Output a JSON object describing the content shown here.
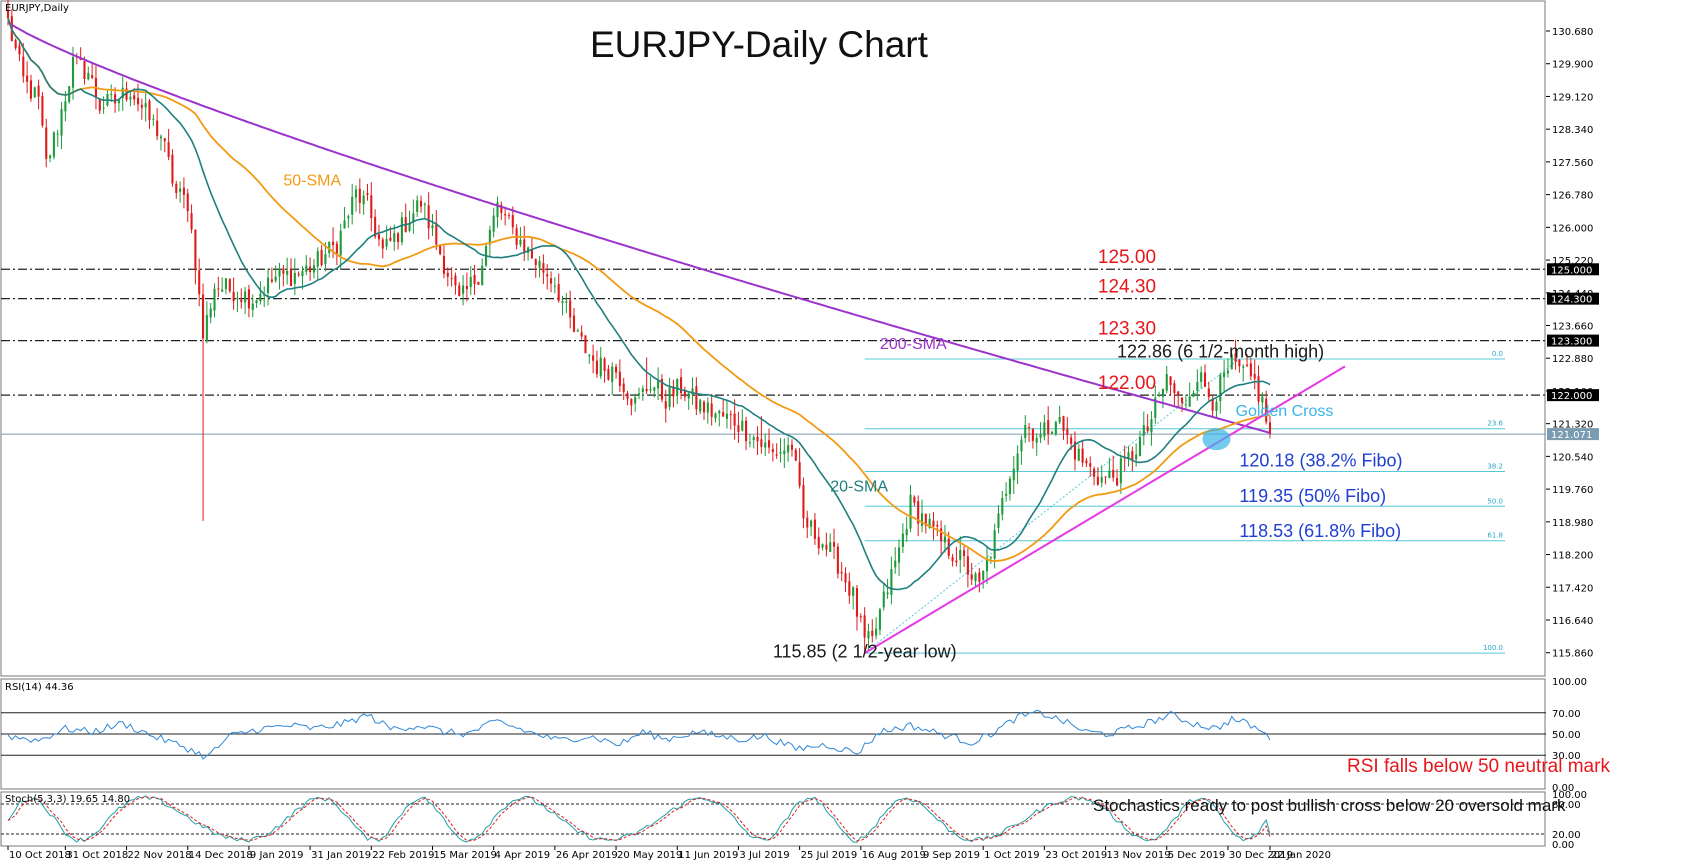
{
  "chart_data": {
    "type": "candlestick",
    "symbol_label": "EURJPY,Daily",
    "title": "EURJPY-Daily Chart",
    "y_axis": {
      "range": [
        115.4,
        131.3
      ],
      "ticks": [
        "130.680",
        "129.900",
        "129.120",
        "128.340",
        "127.560",
        "126.780",
        "126.000",
        "125.220",
        "124.440",
        "123.660",
        "122.880",
        "122.100",
        "121.320",
        "120.540",
        "119.760",
        "118.980",
        "118.200",
        "117.420",
        "116.640",
        "115.860"
      ],
      "price_boxes": [
        {
          "label": "125.000",
          "value": 125.0
        },
        {
          "label": "124.300",
          "value": 124.3
        },
        {
          "label": "123.300",
          "value": 123.3
        },
        {
          "label": "122.000",
          "value": 122.0
        },
        {
          "label": "121.071",
          "value": 121.071
        }
      ]
    },
    "x_axis": {
      "count": 331,
      "labels": [
        {
          "i": 0,
          "text": "10 Oct 2018"
        },
        {
          "i": 15,
          "text": "31 Oct 2018"
        },
        {
          "i": 31,
          "text": "22 Nov 2018"
        },
        {
          "i": 47,
          "text": "14 Dec 2018"
        },
        {
          "i": 63,
          "text": "9 Jan 2019"
        },
        {
          "i": 79,
          "text": "31 Jan 2019"
        },
        {
          "i": 95,
          "text": "22 Feb 2019"
        },
        {
          "i": 111,
          "text": "15 Mar 2019"
        },
        {
          "i": 127,
          "text": "4 Apr 2019"
        },
        {
          "i": 143,
          "text": "26 Apr 2019"
        },
        {
          "i": 159,
          "text": "20 May 2019"
        },
        {
          "i": 175,
          "text": "11 Jun 2019"
        },
        {
          "i": 191,
          "text": "3 Jul 2019"
        },
        {
          "i": 207,
          "text": "25 Jul 2019"
        },
        {
          "i": 223,
          "text": "16 Aug 2019"
        },
        {
          "i": 239,
          "text": "9 Sep 2019"
        },
        {
          "i": 255,
          "text": "1 Oct 2019"
        },
        {
          "i": 271,
          "text": "23 Oct 2019"
        },
        {
          "i": 287,
          "text": "13 Nov 2019"
        },
        {
          "i": 303,
          "text": "5 Dec 2019"
        },
        {
          "i": 319,
          "text": "30 Dec 2019"
        },
        {
          "i": 330,
          "text": "22 Jan 2020"
        }
      ]
    },
    "price_path": [
      [
        0,
        130.9
      ],
      [
        4,
        129.5
      ],
      [
        8,
        129.0
      ],
      [
        10,
        127.5
      ],
      [
        13,
        128.4
      ],
      [
        17,
        129.9
      ],
      [
        21,
        129.7
      ],
      [
        24,
        128.9
      ],
      [
        28,
        129.0
      ],
      [
        32,
        129.3
      ],
      [
        36,
        128.7
      ],
      [
        40,
        128.2
      ],
      [
        44,
        126.8
      ],
      [
        47,
        126.6
      ],
      [
        49,
        125.2
      ],
      [
        51,
        123.4
      ],
      [
        54,
        124.6
      ],
      [
        59,
        124.5
      ],
      [
        64,
        124.3
      ],
      [
        70,
        124.8
      ],
      [
        76,
        124.9
      ],
      [
        80,
        125.1
      ],
      [
        86,
        125.6
      ],
      [
        91,
        126.8
      ],
      [
        94,
        126.5
      ],
      [
        98,
        125.4
      ],
      [
        103,
        126.0
      ],
      [
        108,
        126.6
      ],
      [
        113,
        125.4
      ],
      [
        118,
        124.2
      ],
      [
        123,
        124.9
      ],
      [
        128,
        126.5
      ],
      [
        132,
        125.9
      ],
      [
        137,
        125.3
      ],
      [
        143,
        124.7
      ],
      [
        148,
        123.5
      ],
      [
        154,
        122.7
      ],
      [
        159,
        122.6
      ],
      [
        164,
        121.8
      ],
      [
        168,
        122.3
      ],
      [
        172,
        121.9
      ],
      [
        176,
        122.2
      ],
      [
        180,
        121.8
      ],
      [
        186,
        121.5
      ],
      [
        190,
        121.4
      ],
      [
        195,
        121.0
      ],
      [
        200,
        120.6
      ],
      [
        205,
        120.8
      ],
      [
        208,
        119.0
      ],
      [
        213,
        118.5
      ],
      [
        217,
        118.0
      ],
      [
        221,
        117.2
      ],
      [
        224,
        116.1
      ],
      [
        226,
        116.1
      ],
      [
        228,
        116.8
      ],
      [
        233,
        118.3
      ],
      [
        236,
        119.4
      ],
      [
        240,
        119.0
      ],
      [
        244,
        118.5
      ],
      [
        250,
        118.0
      ],
      [
        254,
        117.4
      ],
      [
        258,
        118.6
      ],
      [
        262,
        120.2
      ],
      [
        266,
        121.3
      ],
      [
        270,
        121.0
      ],
      [
        274,
        121.5
      ],
      [
        278,
        120.8
      ],
      [
        282,
        120.3
      ],
      [
        286,
        120.0
      ],
      [
        290,
        120.1
      ],
      [
        294,
        120.6
      ],
      [
        298,
        121.2
      ],
      [
        303,
        122.4
      ],
      [
        307,
        121.7
      ],
      [
        311,
        122.5
      ],
      [
        315,
        121.9
      ],
      [
        320,
        122.7
      ],
      [
        323,
        122.5
      ],
      [
        326,
        122.3
      ],
      [
        328,
        121.8
      ],
      [
        330,
        121.071
      ]
    ],
    "spikes": [
      {
        "i": 51,
        "low": 119.0
      },
      {
        "i": 197,
        "high": 121.5
      },
      {
        "i": 167,
        "high": 122.9
      },
      {
        "i": 322,
        "high": 122.86
      },
      {
        "i": 224,
        "low": 115.85
      }
    ],
    "horizontal_levels": [
      {
        "value": 125.0,
        "label": "125.00"
      },
      {
        "value": 124.3,
        "label": "124.30"
      },
      {
        "value": 123.3,
        "label": "123.30"
      },
      {
        "value": 122.0,
        "label": "122.00"
      }
    ],
    "fibonacci": {
      "low": 115.85,
      "high": 122.86,
      "start_i": 224,
      "end_i": 330,
      "levels": [
        {
          "ratio_label": "0.0",
          "value": 122.86
        },
        {
          "ratio_label": "23.6",
          "value": 121.2
        },
        {
          "ratio_label": "38.2",
          "value": 120.18
        },
        {
          "ratio_label": "50.0",
          "value": 119.35
        },
        {
          "ratio_label": "61.8",
          "value": 118.53
        },
        {
          "ratio_label": "100.0",
          "value": 115.85
        }
      ]
    },
    "trendline": {
      "from": {
        "i": 224,
        "v": 115.85
      },
      "to": {
        "i": 330,
        "v": 121.6
      }
    },
    "annotations": [
      {
        "text": "50-SMA",
        "color": "#f29a14",
        "i": 72,
        "v": 127.0
      },
      {
        "text": "20-SMA",
        "color": "#1f7f7f",
        "i": 215,
        "v": 119.7
      },
      {
        "text": "200-SMA",
        "color": "#9b33cc",
        "i": 228,
        "v": 123.1
      },
      {
        "text": "125.00",
        "color": "#e8161b",
        "i": 285,
        "v": 125.15
      },
      {
        "text": "124.30",
        "color": "#e8161b",
        "i": 285,
        "v": 124.45
      },
      {
        "text": "123.30",
        "color": "#e8161b",
        "i": 285,
        "v": 123.45
      },
      {
        "text": "122.00",
        "color": "#e8161b",
        "i": 285,
        "v": 122.15
      },
      {
        "text": "122.86 (6 1/2-month high)",
        "color": "#1a1a1a",
        "i": 290,
        "v": 122.9
      },
      {
        "text": "Golden Cross",
        "color": "#3ab5e6",
        "i": 321,
        "v": 121.5
      },
      {
        "text": "120.18 (38.2% Fibo)",
        "color": "#1f3fd1",
        "i": 322,
        "v": 120.3
      },
      {
        "text": "119.35 (50% Fibo)",
        "color": "#1f3fd1",
        "i": 322,
        "v": 119.45
      },
      {
        "text": "118.53 (61.8% Fibo)",
        "color": "#1f3fd1",
        "i": 322,
        "v": 118.62
      },
      {
        "text": "115.85 (2 1/2-year low)",
        "color": "#1a1a1a",
        "i": 200,
        "v": 115.75
      }
    ],
    "golden_cross": {
      "i": 316,
      "v": 120.95
    },
    "rsi": {
      "label": "RSI(14) 44.36",
      "levels": [
        70,
        50,
        30
      ],
      "ticks": [
        "100.00",
        "70.00",
        "50.00",
        "30.00",
        "0.00"
      ],
      "path": [
        [
          0,
          48
        ],
        [
          8,
          44
        ],
        [
          15,
          55
        ],
        [
          22,
          52
        ],
        [
          30,
          60
        ],
        [
          38,
          48
        ],
        [
          46,
          38
        ],
        [
          52,
          28
        ],
        [
          58,
          48
        ],
        [
          66,
          55
        ],
        [
          74,
          58
        ],
        [
          80,
          55
        ],
        [
          88,
          60
        ],
        [
          94,
          68
        ],
        [
          100,
          55
        ],
        [
          108,
          58
        ],
        [
          114,
          52
        ],
        [
          120,
          50
        ],
        [
          128,
          62
        ],
        [
          136,
          52
        ],
        [
          144,
          44
        ],
        [
          152,
          48
        ],
        [
          160,
          40
        ],
        [
          166,
          52
        ],
        [
          172,
          45
        ],
        [
          180,
          52
        ],
        [
          186,
          48
        ],
        [
          192,
          45
        ],
        [
          198,
          48
        ],
        [
          206,
          36
        ],
        [
          214,
          40
        ],
        [
          222,
          32
        ],
        [
          228,
          52
        ],
        [
          236,
          58
        ],
        [
          244,
          50
        ],
        [
          252,
          42
        ],
        [
          258,
          52
        ],
        [
          264,
          66
        ],
        [
          270,
          70
        ],
        [
          276,
          62
        ],
        [
          282,
          52
        ],
        [
          288,
          50
        ],
        [
          296,
          58
        ],
        [
          304,
          68
        ],
        [
          310,
          60
        ],
        [
          316,
          55
        ],
        [
          320,
          64
        ],
        [
          324,
          60
        ],
        [
          328,
          52
        ],
        [
          330,
          44.36
        ]
      ],
      "annotation": "RSI falls below 50 neutral mark"
    },
    "stochastic": {
      "label": "Stoch(5,3,3) 19.65 14.80",
      "levels": [
        80,
        20
      ],
      "ticks": [
        "100.00",
        "80.00",
        "20.00",
        "0.00"
      ],
      "k_value": 19.65,
      "d_value": 14.8,
      "annotation": "Stochastics ready to post bullish cross below 20 oversold mark"
    },
    "colors": {
      "bull": "#1e9a3a",
      "bear": "#e01a1a",
      "sma20": "#1f7f7f",
      "sma50": "#f29a14",
      "sma200": "#9b33cc",
      "level_line": "#222222",
      "fibo": "#57c8d6",
      "trend": "#e639e6",
      "rsi_line": "#2f87d8",
      "stoch_k": "#1fa0a8",
      "stoch_d": "#e02020",
      "current_price": "#7a9bb0"
    }
  }
}
